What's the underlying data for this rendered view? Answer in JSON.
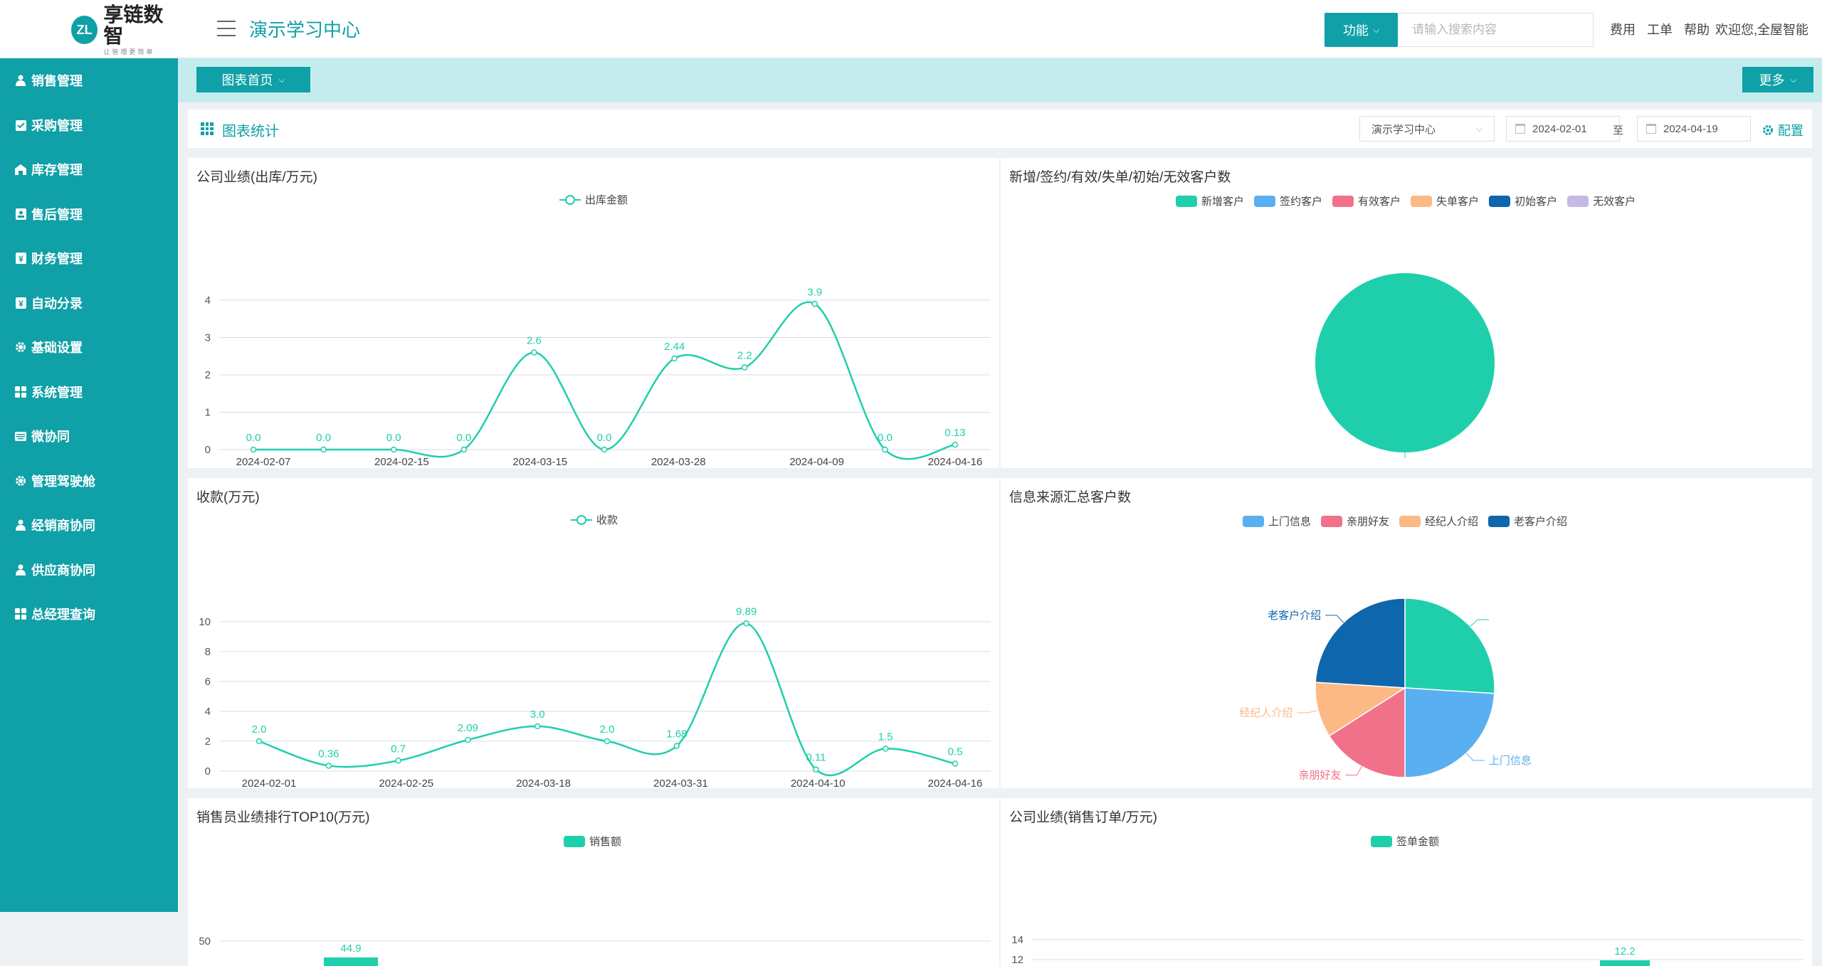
{
  "header": {
    "logo_mark": "ZL",
    "logo_name": "享链数智",
    "logo_slogan": "让管理更简单",
    "app_title": "演示学习中心",
    "function_button": "功能",
    "search_placeholder": "请输入搜索内容",
    "links": [
      "费用",
      "工单",
      "帮助"
    ],
    "welcome": "欢迎您,全屋智能"
  },
  "sidebar": {
    "items": [
      {
        "label": "销售管理",
        "icon": "user-icon"
      },
      {
        "label": "采购管理",
        "icon": "clipboard-check-icon"
      },
      {
        "label": "库存管理",
        "icon": "warehouse-icon"
      },
      {
        "label": "售后管理",
        "icon": "id-card-icon"
      },
      {
        "label": "财务管理",
        "icon": "yen-icon"
      },
      {
        "label": "自动分录",
        "icon": "yen-icon"
      },
      {
        "label": "基础设置",
        "icon": "gear-icon"
      },
      {
        "label": "系统管理",
        "icon": "grid-icon"
      },
      {
        "label": "微协同",
        "icon": "keyboard-icon"
      },
      {
        "label": "管理驾驶舱",
        "icon": "gear-icon"
      },
      {
        "label": "经销商协同",
        "icon": "user-icon"
      },
      {
        "label": "供应商协同",
        "icon": "user-icon"
      },
      {
        "label": "总经理查询",
        "icon": "grid-icon"
      }
    ]
  },
  "tabs": {
    "home_label": "图表首页",
    "more_label": "更多"
  },
  "toolbar": {
    "title": "图表统计",
    "org_select": "演示学习中心",
    "date_from": "2024-02-01",
    "date_sep": "至",
    "date_to": "2024-04-19",
    "config_label": "配置"
  },
  "colors": {
    "primary": "#0fa0a8",
    "series_green": "#1fcfac",
    "blue": "#5aaff0",
    "pink": "#f2718a",
    "orange": "#fcb985",
    "navy": "#0e66ad",
    "lavender": "#c8b8e8"
  },
  "chart_data": [
    {
      "type": "line",
      "title": "公司业绩(出库/万元)",
      "series": [
        {
          "name": "出库金额",
          "values": [
            0.0,
            0.0,
            0.0,
            0.0,
            2.6,
            0.0,
            2.44,
            2.2,
            3.9,
            0.0,
            0.13
          ]
        }
      ],
      "x_ticks": [
        "2024-02-07",
        "2024-02-15",
        "2024-03-15",
        "2024-03-28",
        "2024-04-09",
        "2024-04-16"
      ],
      "labels": [
        "0.0",
        "0.0",
        "0.0",
        "0.0",
        "2.6",
        "0.0",
        "2.44",
        "2.2",
        "3.9",
        "0.0",
        "0.13"
      ],
      "y_ticks": [
        0,
        1,
        2,
        3,
        4
      ],
      "ylim": [
        0,
        4
      ]
    },
    {
      "type": "pie",
      "title": "新增/签约/有效/失单/初始/无效客户数",
      "legend": [
        "新增客户",
        "签约客户",
        "有效客户",
        "失单客户",
        "初始客户",
        "无效客户"
      ],
      "values": [
        1,
        0,
        0,
        0,
        0,
        0
      ]
    },
    {
      "type": "line",
      "title": "收款(万元)",
      "series": [
        {
          "name": "收款",
          "values": [
            2.0,
            0.36,
            0.7,
            2.09,
            3.0,
            2.0,
            1.68,
            9.89,
            0.11,
            1.5,
            0.5
          ]
        }
      ],
      "x_ticks": [
        "2024-02-01",
        "2024-02-25",
        "2024-03-18",
        "2024-03-31",
        "2024-04-10",
        "2024-04-16"
      ],
      "labels": [
        "2.0",
        "0.36",
        "0.7",
        "2.09",
        "3.0",
        "2.0",
        "1.68",
        "9.89",
        "0.11",
        "1.5",
        "0.5"
      ],
      "y_ticks": [
        0,
        2,
        4,
        6,
        8,
        10
      ],
      "ylim": [
        0,
        10
      ]
    },
    {
      "type": "pie",
      "title": "信息来源汇总客户数",
      "legend": [
        "上门信息",
        "亲朋好友",
        "经纪人介绍",
        "老客户介绍"
      ],
      "slices": [
        {
          "name": "",
          "value": 26
        },
        {
          "name": "上门信息",
          "value": 24
        },
        {
          "name": "亲朋好友",
          "value": 16
        },
        {
          "name": "经纪人介绍",
          "value": 10
        },
        {
          "name": "老客户介绍",
          "value": 24
        }
      ]
    },
    {
      "type": "bar",
      "title": "销售员业绩排行TOP10(万元)",
      "series": [
        {
          "name": "销售额",
          "values": [
            44.9
          ]
        }
      ],
      "labels": [
        "44.9"
      ],
      "y_ticks": [
        50
      ]
    },
    {
      "type": "bar",
      "title": "公司业绩(销售订单/万元)",
      "series": [
        {
          "name": "签单金额",
          "values": [
            12.2
          ]
        }
      ],
      "labels": [
        "12.2"
      ],
      "y_ticks": [
        14,
        12
      ]
    }
  ]
}
